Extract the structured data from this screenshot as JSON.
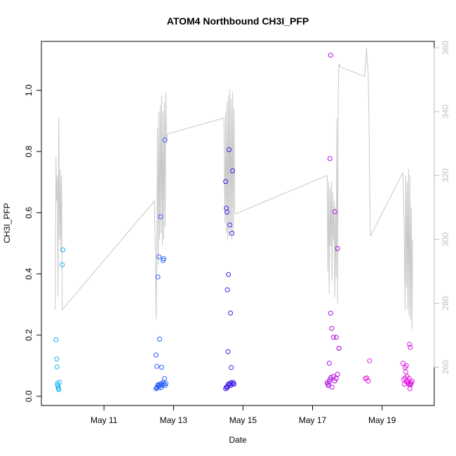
{
  "chart_data": {
    "type": "scatter",
    "title": "ATOM4 Northbound CH3I_PFP",
    "xlabel": "Date",
    "ylabel": "CH3I_PFP",
    "x_unit": "day of May",
    "xlim": [
      9.2,
      20.5
    ],
    "ylim": [
      -0.03,
      1.16
    ],
    "y2lim": [
      248,
      362
    ],
    "x_ticks": [
      {
        "value": 11,
        "label": "May 11"
      },
      {
        "value": 13,
        "label": "May 13"
      },
      {
        "value": 15,
        "label": "May 15"
      },
      {
        "value": 17,
        "label": "May 17"
      },
      {
        "value": 19,
        "label": "May 19"
      }
    ],
    "y_ticks": [
      {
        "value": 0.0,
        "label": "0.0"
      },
      {
        "value": 0.2,
        "label": "0.2"
      },
      {
        "value": 0.4,
        "label": "0.4"
      },
      {
        "value": 0.6,
        "label": "0.6"
      },
      {
        "value": 0.8,
        "label": "0.8"
      },
      {
        "value": 1.0,
        "label": "1.0"
      }
    ],
    "y2_ticks": [
      {
        "value": 260,
        "label": "260"
      },
      {
        "value": 280,
        "label": "280"
      },
      {
        "value": 300,
        "label": "300"
      },
      {
        "value": 320,
        "label": "320"
      },
      {
        "value": 340,
        "label": "340"
      },
      {
        "value": 360,
        "label": "360"
      }
    ],
    "colors": {
      "flight1": "#1ab2f0",
      "flight2": "#2a5ff5",
      "flight3": "#4418e8",
      "flight4": "#b010e0",
      "flight5": "#e018e0",
      "line": "#c8c8c8",
      "right_axis": "#bfbfbf"
    },
    "series": [
      {
        "name": "flight1",
        "color_key": "flight1",
        "x": [
          9.62,
          9.64,
          9.65,
          9.66,
          9.67,
          9.68,
          9.69,
          9.7,
          9.72,
          9.8,
          9.82
        ],
        "y": [
          0.185,
          0.122,
          0.096,
          0.042,
          0.036,
          0.03,
          0.025,
          0.022,
          0.046,
          0.43,
          0.479
        ]
      },
      {
        "name": "flight2",
        "color_key": "flight2",
        "x": [
          12.5,
          12.52,
          12.53,
          12.55,
          12.56,
          12.58,
          12.6,
          12.62,
          12.64,
          12.66,
          12.68,
          12.7,
          12.72,
          12.74,
          12.76,
          12.78,
          12.5,
          12.52,
          12.55,
          12.58,
          12.6,
          12.63,
          12.66,
          12.7,
          12.72,
          12.75
        ],
        "y": [
          0.025,
          0.028,
          0.03,
          0.035,
          0.038,
          0.03,
          0.035,
          0.04,
          0.028,
          0.042,
          0.036,
          0.045,
          0.04,
          0.058,
          0.036,
          0.042,
          0.135,
          0.098,
          0.39,
          0.456,
          0.187,
          0.587,
          0.095,
          0.444,
          0.45,
          0.838
        ]
      },
      {
        "name": "flight3",
        "color_key": "flight3",
        "x": [
          14.5,
          14.52,
          14.54,
          14.55,
          14.58,
          14.6,
          14.62,
          14.64,
          14.66,
          14.7,
          14.72,
          14.74,
          14.5,
          14.52,
          14.54,
          14.55,
          14.57,
          14.58,
          14.6,
          14.62,
          14.64,
          14.66,
          14.68,
          14.7
        ],
        "y": [
          0.025,
          0.03,
          0.028,
          0.032,
          0.04,
          0.038,
          0.042,
          0.035,
          0.045,
          0.04,
          0.045,
          0.04,
          0.702,
          0.615,
          0.602,
          0.348,
          0.146,
          0.398,
          0.806,
          0.56,
          0.272,
          0.094,
          0.533,
          0.737
        ]
      },
      {
        "name": "flight4",
        "color_key": "flight4",
        "x": [
          17.42,
          17.44,
          17.46,
          17.48,
          17.5,
          17.53,
          17.56,
          17.6,
          17.64,
          17.68,
          17.72,
          17.76,
          17.48,
          17.5,
          17.52,
          17.55,
          17.6,
          17.64,
          17.68,
          17.72,
          17.76,
          17.52
        ],
        "y": [
          0.045,
          0.04,
          0.035,
          0.048,
          0.055,
          0.062,
          0.03,
          0.065,
          0.05,
          0.058,
          0.072,
          0.157,
          0.108,
          0.777,
          0.272,
          0.222,
          0.193,
          0.603,
          0.193,
          0.483,
          0.157,
          1.115
        ]
      },
      {
        "name": "flight5",
        "color_key": "flight5",
        "x": [
          18.52,
          18.56,
          18.6,
          18.64,
          19.6,
          19.64,
          19.66,
          19.68,
          19.7,
          19.72,
          19.74,
          19.76,
          19.78,
          19.8,
          19.82,
          19.84,
          19.62,
          19.66,
          19.7,
          19.74,
          19.78,
          19.82,
          19.86,
          19.79,
          19.81
        ],
        "y": [
          0.058,
          0.06,
          0.05,
          0.116,
          0.108,
          0.04,
          0.095,
          0.08,
          0.1,
          0.065,
          0.05,
          0.04,
          0.042,
          0.025,
          0.038,
          0.044,
          0.055,
          0.06,
          0.048,
          0.045,
          0.058,
          0.04,
          0.05,
          0.17,
          0.16
        ]
      }
    ],
    "y2_series": {
      "name": "altitude_trace",
      "color_key": "line",
      "x": [
        9.6,
        9.62,
        9.64,
        9.66,
        9.68,
        9.7,
        9.72,
        9.74,
        9.76,
        9.78,
        9.8,
        12.45,
        12.48,
        12.5,
        12.52,
        12.54,
        12.56,
        12.58,
        12.6,
        12.62,
        12.64,
        12.66,
        12.68,
        12.7,
        12.72,
        12.74,
        12.76,
        12.78,
        12.8,
        12.82,
        14.45,
        14.48,
        14.5,
        14.52,
        14.54,
        14.56,
        14.58,
        14.6,
        14.62,
        14.64,
        14.66,
        14.68,
        14.7,
        14.72,
        14.74,
        14.76,
        14.78,
        17.42,
        17.44,
        17.46,
        17.48,
        17.5,
        17.52,
        17.54,
        17.56,
        17.58,
        17.6,
        17.62,
        17.64,
        17.66,
        17.68,
        17.7,
        17.72,
        17.74,
        17.76,
        17.8,
        18.5,
        18.55,
        18.6,
        18.62,
        18.64,
        18.66,
        19.6,
        19.64,
        19.66,
        19.68,
        19.7,
        19.72,
        19.74,
        19.76,
        19.78,
        19.8,
        19.82,
        19.84,
        19.86,
        19.88
      ],
      "y": [
        278,
        326,
        312,
        320,
        282,
        338,
        300,
        322,
        296,
        320,
        278,
        312,
        296,
        275,
        296,
        335,
        292,
        340,
        300,
        342,
        302,
        345,
        298,
        340,
        300,
        343,
        304,
        346,
        330,
        333,
        338,
        305,
        340,
        302,
        343,
        300,
        345,
        301,
        347,
        303,
        344,
        300,
        346,
        302,
        341,
        309,
        308,
        320,
        290,
        318,
        283,
        316,
        298,
        318,
        287,
        315,
        300,
        312,
        282,
        310,
        288,
        338,
        280,
        348,
        355,
        354,
        351,
        360,
        352,
        340,
        320,
        301,
        321,
        300,
        278,
        320,
        285,
        318,
        278,
        322,
        276,
        320,
        275,
        310,
        272,
        300
      ]
    }
  }
}
